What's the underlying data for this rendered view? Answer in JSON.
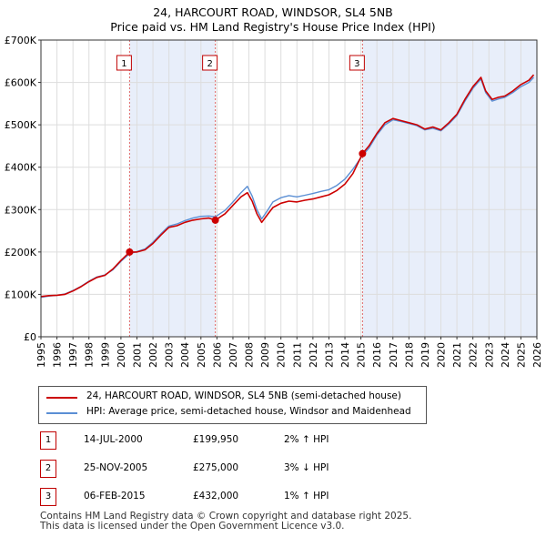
{
  "chart_data": {
    "type": "line",
    "title": "24, HARCOURT ROAD, WINDSOR, SL4 5NB",
    "subtitle": "Price paid vs. HM Land Registry's House Price Index (HPI)",
    "xlim": [
      1995,
      2026
    ],
    "ylim": [
      0,
      700000
    ],
    "x_ticks": [
      "1995",
      "1996",
      "1997",
      "1998",
      "1999",
      "2000",
      "2001",
      "2002",
      "2003",
      "2004",
      "2005",
      "2006",
      "2007",
      "2008",
      "2009",
      "2010",
      "2011",
      "2012",
      "2013",
      "2014",
      "2015",
      "2016",
      "2017",
      "2018",
      "2019",
      "2020",
      "2021",
      "2022",
      "2023",
      "2024",
      "2025",
      "2026"
    ],
    "y_ticks": [
      {
        "value": 0,
        "label": "£0"
      },
      {
        "value": 100000,
        "label": "£100K"
      },
      {
        "value": 200000,
        "label": "£200K"
      },
      {
        "value": 300000,
        "label": "£300K"
      },
      {
        "value": 400000,
        "label": "£400K"
      },
      {
        "value": 500000,
        "label": "£500K"
      },
      {
        "value": 600000,
        "label": "£600K"
      },
      {
        "value": 700000,
        "label": "£700K"
      }
    ],
    "series": [
      {
        "name": "24, HARCOURT ROAD, WINDSOR, SL4 5NB (semi-detached house)",
        "color": "#cc0000",
        "x": [
          1995.0,
          1995.5,
          1996.0,
          1996.5,
          1997.0,
          1997.5,
          1998.0,
          1998.5,
          1999.0,
          1999.5,
          2000.0,
          2000.54,
          2001.0,
          2001.5,
          2002.0,
          2002.5,
          2003.0,
          2003.5,
          2004.0,
          2004.5,
          2005.0,
          2005.5,
          2005.9,
          2006.5,
          2007.0,
          2007.5,
          2007.9,
          2008.2,
          2008.5,
          2008.8,
          2009.2,
          2009.5,
          2010.0,
          2010.5,
          2011.0,
          2011.5,
          2012.0,
          2012.5,
          2013.0,
          2013.5,
          2014.0,
          2014.5,
          2015.1,
          2015.5,
          2016.0,
          2016.5,
          2017.0,
          2017.5,
          2018.0,
          2018.5,
          2019.0,
          2019.5,
          2020.0,
          2020.5,
          2021.0,
          2021.5,
          2022.0,
          2022.5,
          2022.8,
          2023.2,
          2023.6,
          2024.0,
          2024.5,
          2025.0,
          2025.5,
          2025.8
        ],
        "y": [
          95000,
          97000,
          98000,
          100000,
          108000,
          118000,
          130000,
          140000,
          145000,
          160000,
          180000,
          199950,
          200000,
          205000,
          220000,
          240000,
          258000,
          262000,
          270000,
          275000,
          278000,
          280000,
          275000,
          290000,
          310000,
          330000,
          340000,
          320000,
          290000,
          270000,
          290000,
          305000,
          315000,
          320000,
          318000,
          322000,
          325000,
          330000,
          335000,
          345000,
          360000,
          385000,
          432000,
          450000,
          480000,
          505000,
          515000,
          510000,
          505000,
          500000,
          490000,
          495000,
          488000,
          505000,
          525000,
          560000,
          590000,
          612000,
          580000,
          560000,
          565000,
          568000,
          580000,
          595000,
          605000,
          618000
        ]
      },
      {
        "name": "HPI: Average price, semi-detached house, Windsor and Maidenhead",
        "color": "#5b8fd4",
        "x": [
          1995.0,
          1995.5,
          1996.0,
          1996.5,
          1997.0,
          1997.5,
          1998.0,
          1998.5,
          1999.0,
          1999.5,
          2000.0,
          2000.54,
          2001.0,
          2001.5,
          2002.0,
          2002.5,
          2003.0,
          2003.5,
          2004.0,
          2004.5,
          2005.0,
          2005.5,
          2005.9,
          2006.5,
          2007.0,
          2007.5,
          2007.9,
          2008.2,
          2008.5,
          2008.8,
          2009.2,
          2009.5,
          2010.0,
          2010.5,
          2011.0,
          2011.5,
          2012.0,
          2012.5,
          2013.0,
          2013.5,
          2014.0,
          2014.5,
          2015.1,
          2015.5,
          2016.0,
          2016.5,
          2017.0,
          2017.5,
          2018.0,
          2018.5,
          2019.0,
          2019.5,
          2020.0,
          2020.5,
          2021.0,
          2021.5,
          2022.0,
          2022.5,
          2022.8,
          2023.2,
          2023.6,
          2024.0,
          2024.5,
          2025.0,
          2025.5,
          2025.8
        ],
        "y": [
          93000,
          96000,
          98000,
          101000,
          109000,
          119000,
          131000,
          141000,
          146000,
          158000,
          178000,
          196000,
          201000,
          207000,
          223000,
          243000,
          261000,
          266000,
          274000,
          280000,
          284000,
          285000,
          283000,
          298000,
          318000,
          340000,
          355000,
          332000,
          300000,
          278000,
          300000,
          318000,
          328000,
          333000,
          330000,
          334000,
          338000,
          343000,
          347000,
          357000,
          372000,
          395000,
          428000,
          445000,
          476000,
          500000,
          512000,
          508000,
          503000,
          498000,
          488000,
          492000,
          486000,
          502000,
          522000,
          556000,
          586000,
          608000,
          576000,
          556000,
          561000,
          565000,
          576000,
          590000,
          600000,
          612000
        ]
      }
    ],
    "transactions": [
      {
        "label": "1",
        "x": 2000.54,
        "price": 199950,
        "date": "14-JUL-2000",
        "price_label": "£199,950",
        "hpi_label": "2% ↑ HPI"
      },
      {
        "label": "2",
        "x": 2005.9,
        "price": 275000,
        "date": "25-NOV-2005",
        "price_label": "£275,000",
        "hpi_label": "3% ↓ HPI"
      },
      {
        "label": "3",
        "x": 2015.1,
        "price": 432000,
        "date": "06-FEB-2015",
        "price_label": "£432,000",
        "hpi_label": "1% ↑ HPI"
      }
    ],
    "footer": [
      "Contains HM Land Registry data © Crown copyright and database right 2025.",
      "This data is licensed under the Open Government Licence v3.0."
    ]
  }
}
